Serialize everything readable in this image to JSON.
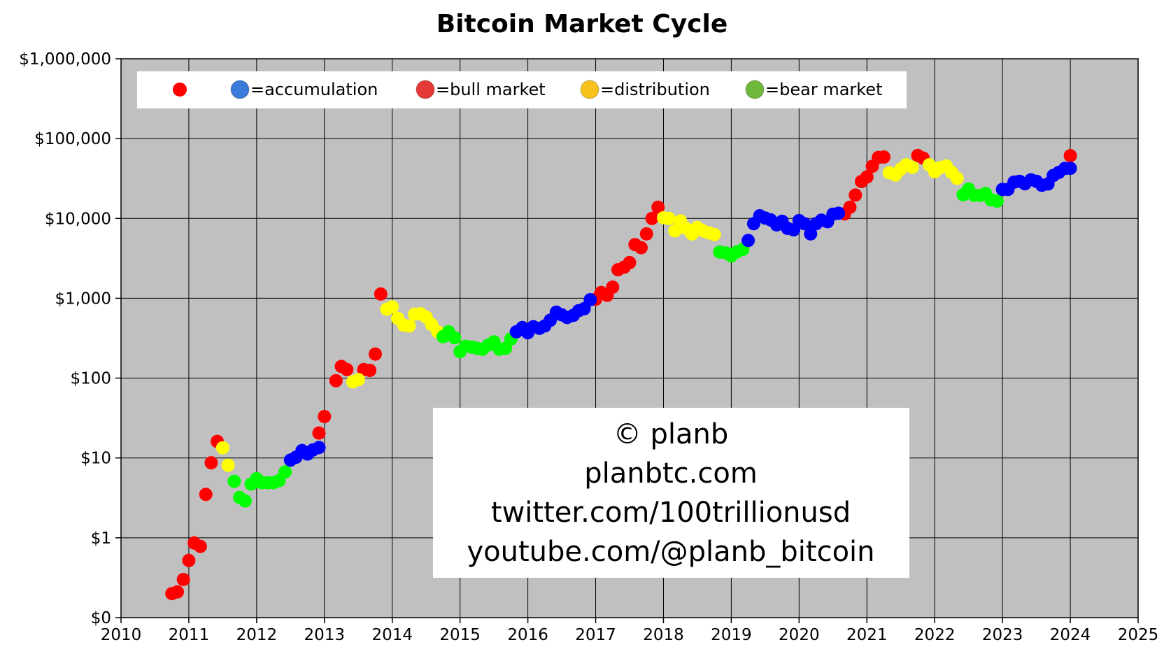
{
  "chart_data": {
    "type": "scatter",
    "title": "Bitcoin Market Cycle",
    "xlabel": "",
    "ylabel": "",
    "x_scale": "linear",
    "y_scale": "log",
    "xlim": [
      2010,
      2025
    ],
    "ylim": [
      0.1,
      1000000
    ],
    "x_ticks": [
      2010,
      2011,
      2012,
      2013,
      2014,
      2015,
      2016,
      2017,
      2018,
      2019,
      2020,
      2021,
      2022,
      2023,
      2024,
      2025
    ],
    "x_tick_labels": [
      "2010",
      "2011",
      "2012",
      "2013",
      "2014",
      "2015",
      "2016",
      "2017",
      "2018",
      "2019",
      "2020",
      "2021",
      "2022",
      "2023",
      "2024",
      "2025"
    ],
    "y_ticks": [
      0.1,
      1,
      10,
      100,
      1000,
      10000,
      100000,
      1000000
    ],
    "y_tick_labels": [
      "$0",
      "$1",
      "$10",
      "$100",
      "$1,000",
      "$10,000",
      "$100,000",
      "$1,000,000"
    ],
    "grid": true,
    "background": "#c0c0c0",
    "legend": {
      "placement": "top-left",
      "entries": [
        {
          "marker": "",
          "color": "#ff0000",
          "label": ""
        },
        {
          "marker": "🔵",
          "color": "#3a7ad8",
          "label": "=accumulation"
        },
        {
          "marker": "🔴",
          "color": "#e53935",
          "label": "=bull market"
        },
        {
          "marker": "🟡",
          "color": "#f7c21b",
          "label": "=distribution"
        },
        {
          "marker": "🟢",
          "color": "#6fb83b",
          "label": "=bear market"
        }
      ]
    },
    "annotation_lines": [
      "© planb",
      "planbtc.com",
      "twitter.com/100trillionusd",
      "youtube.com/@planb_bitcoin"
    ],
    "series": [
      {
        "color": "#ff0000",
        "points": [
          [
            2010.75,
            0.2
          ],
          [
            2010.83,
            0.21
          ],
          [
            2010.92,
            0.3
          ],
          [
            2011.0,
            0.52
          ],
          [
            2011.08,
            0.86
          ],
          [
            2011.17,
            0.78
          ],
          [
            2011.25,
            3.5
          ],
          [
            2011.33,
            8.7
          ],
          [
            2011.42,
            16.1
          ],
          [
            2012.92,
            20.5
          ],
          [
            2013.0,
            33
          ],
          [
            2013.17,
            93
          ],
          [
            2013.25,
            140
          ],
          [
            2013.33,
            128
          ],
          [
            2013.58,
            128
          ],
          [
            2013.67,
            125
          ],
          [
            2013.75,
            200
          ],
          [
            2013.83,
            1130
          ],
          [
            2017.0,
            970
          ],
          [
            2017.08,
            1180
          ],
          [
            2017.17,
            1090
          ],
          [
            2017.25,
            1380
          ],
          [
            2017.33,
            2280
          ],
          [
            2017.42,
            2450
          ],
          [
            2017.5,
            2800
          ],
          [
            2017.58,
            4700
          ],
          [
            2017.67,
            4300
          ],
          [
            2017.75,
            6400
          ],
          [
            2017.83,
            10000
          ],
          [
            2017.92,
            13800
          ],
          [
            2020.67,
            11400
          ],
          [
            2020.75,
            13800
          ],
          [
            2020.83,
            19600
          ],
          [
            2020.92,
            29000
          ],
          [
            2021.0,
            33100
          ],
          [
            2021.08,
            45000
          ],
          [
            2021.17,
            58000
          ],
          [
            2021.25,
            58800
          ],
          [
            2021.75,
            61300
          ],
          [
            2021.83,
            57000
          ],
          [
            2024.0,
            61000
          ]
        ]
      },
      {
        "color": "#ffff00",
        "points": [
          [
            2011.5,
            13.4
          ],
          [
            2011.58,
            8.1
          ],
          [
            2013.42,
            90
          ],
          [
            2013.5,
            96
          ],
          [
            2013.92,
            730
          ],
          [
            2014.0,
            780
          ],
          [
            2014.08,
            560
          ],
          [
            2014.17,
            460
          ],
          [
            2014.25,
            450
          ],
          [
            2014.33,
            630
          ],
          [
            2014.42,
            640
          ],
          [
            2014.5,
            580
          ],
          [
            2014.58,
            470
          ],
          [
            2014.67,
            380
          ],
          [
            2018.0,
            10200
          ],
          [
            2018.08,
            10000
          ],
          [
            2018.17,
            7000
          ],
          [
            2018.25,
            9300
          ],
          [
            2018.33,
            7500
          ],
          [
            2018.42,
            6400
          ],
          [
            2018.5,
            7700
          ],
          [
            2018.58,
            7000
          ],
          [
            2018.67,
            6600
          ],
          [
            2018.75,
            6300
          ],
          [
            2021.33,
            37300
          ],
          [
            2021.42,
            35000
          ],
          [
            2021.5,
            41500
          ],
          [
            2021.58,
            47000
          ],
          [
            2021.67,
            43800
          ],
          [
            2021.92,
            47000
          ],
          [
            2022.0,
            38500
          ],
          [
            2022.08,
            43200
          ],
          [
            2022.17,
            45500
          ],
          [
            2022.25,
            37700
          ],
          [
            2022.33,
            31800
          ]
        ]
      },
      {
        "color": "#00ff00",
        "points": [
          [
            2011.67,
            5.1
          ],
          [
            2011.75,
            3.2
          ],
          [
            2011.83,
            2.9
          ],
          [
            2011.92,
            4.7
          ],
          [
            2012.0,
            5.5
          ],
          [
            2012.08,
            4.9
          ],
          [
            2012.17,
            4.9
          ],
          [
            2012.25,
            4.9
          ],
          [
            2012.33,
            5.2
          ],
          [
            2012.42,
            6.7
          ],
          [
            2014.75,
            330
          ],
          [
            2014.83,
            380
          ],
          [
            2014.92,
            320
          ],
          [
            2015.0,
            215
          ],
          [
            2015.08,
            250
          ],
          [
            2015.17,
            245
          ],
          [
            2015.25,
            236
          ],
          [
            2015.33,
            230
          ],
          [
            2015.42,
            260
          ],
          [
            2015.5,
            285
          ],
          [
            2015.58,
            230
          ],
          [
            2015.67,
            236
          ],
          [
            2015.75,
            310
          ],
          [
            2018.83,
            3800
          ],
          [
            2018.92,
            3700
          ],
          [
            2019.0,
            3400
          ],
          [
            2019.08,
            3800
          ],
          [
            2019.17,
            4100
          ],
          [
            2022.42,
            19800
          ],
          [
            2022.5,
            23300
          ],
          [
            2022.58,
            19500
          ],
          [
            2022.67,
            19400
          ],
          [
            2022.75,
            20500
          ],
          [
            2022.83,
            17100
          ],
          [
            2022.92,
            16500
          ]
        ]
      },
      {
        "color": "#0000ff",
        "points": [
          [
            2012.5,
            9.4
          ],
          [
            2012.58,
            10.2
          ],
          [
            2012.67,
            12.4
          ],
          [
            2012.75,
            11.2
          ],
          [
            2012.83,
            12.6
          ],
          [
            2012.92,
            13.5
          ],
          [
            2015.83,
            380
          ],
          [
            2015.92,
            430
          ],
          [
            2016.0,
            370
          ],
          [
            2016.08,
            440
          ],
          [
            2016.17,
            420
          ],
          [
            2016.25,
            450
          ],
          [
            2016.33,
            530
          ],
          [
            2016.42,
            670
          ],
          [
            2016.5,
            620
          ],
          [
            2016.58,
            575
          ],
          [
            2016.67,
            610
          ],
          [
            2016.75,
            700
          ],
          [
            2016.83,
            740
          ],
          [
            2016.92,
            960
          ],
          [
            2019.25,
            5300
          ],
          [
            2019.33,
            8600
          ],
          [
            2019.42,
            10800
          ],
          [
            2019.5,
            10100
          ],
          [
            2019.58,
            9600
          ],
          [
            2019.67,
            8300
          ],
          [
            2019.75,
            9200
          ],
          [
            2019.83,
            7500
          ],
          [
            2019.92,
            7200
          ],
          [
            2020.0,
            9400
          ],
          [
            2020.08,
            8600
          ],
          [
            2020.17,
            6400
          ],
          [
            2020.25,
            8600
          ],
          [
            2020.33,
            9500
          ],
          [
            2020.42,
            9100
          ],
          [
            2020.5,
            11300
          ],
          [
            2020.58,
            11600
          ],
          [
            2023.0,
            23100
          ],
          [
            2023.08,
            23100
          ],
          [
            2023.17,
            28500
          ],
          [
            2023.25,
            29200
          ],
          [
            2023.33,
            27200
          ],
          [
            2023.42,
            30500
          ],
          [
            2023.5,
            29200
          ],
          [
            2023.58,
            26000
          ],
          [
            2023.67,
            27000
          ],
          [
            2023.75,
            34500
          ],
          [
            2023.83,
            37700
          ],
          [
            2023.92,
            42300
          ],
          [
            2024.0,
            42500
          ]
        ]
      }
    ]
  }
}
